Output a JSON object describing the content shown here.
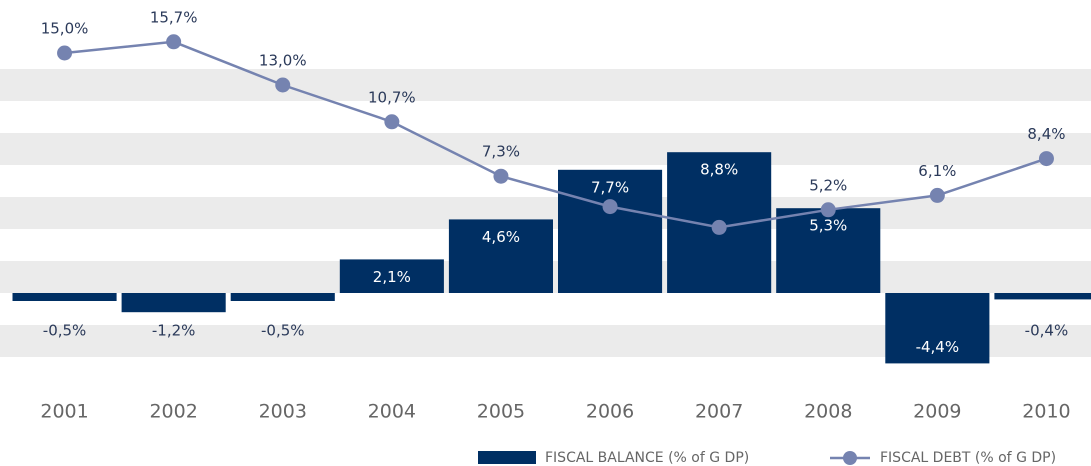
{
  "chart_data": {
    "type": "bar-line",
    "categories": [
      "2001",
      "2002",
      "2003",
      "2004",
      "2005",
      "2006",
      "2007",
      "2008",
      "2009",
      "2010"
    ],
    "series": [
      {
        "name": "FISCAL BALANCE (% of G DP)",
        "type": "bar",
        "color": "#002f63",
        "values": [
          -0.5,
          -1.2,
          -0.5,
          2.1,
          4.6,
          7.7,
          8.8,
          5.3,
          -4.4,
          -0.4
        ],
        "value_labels": [
          "-0,5%",
          "-1,2%",
          "-0,5%",
          "2,1%",
          "4,6%",
          "7,7%",
          "8,8%",
          "5,3%",
          "-4,4%",
          "-0,4%"
        ]
      },
      {
        "name": "FISCAL DEBT (% of G DP)",
        "type": "line",
        "color": "#7583b0",
        "values": [
          15.0,
          15.7,
          13.0,
          10.7,
          7.3,
          5.4,
          4.1,
          5.2,
          6.1,
          8.4
        ],
        "value_labels": [
          "15,0%",
          "15,7%",
          "13,0%",
          "10,7%",
          "7,3%",
          null,
          null,
          "5,2%",
          "6,1%",
          "8,4%"
        ]
      }
    ],
    "ylim": [
      -6,
      16
    ],
    "yticks": [
      -6,
      -4,
      -2,
      0,
      2,
      4,
      6,
      8,
      10,
      12,
      14,
      16
    ],
    "grid": true,
    "legend": "bottom-right"
  }
}
